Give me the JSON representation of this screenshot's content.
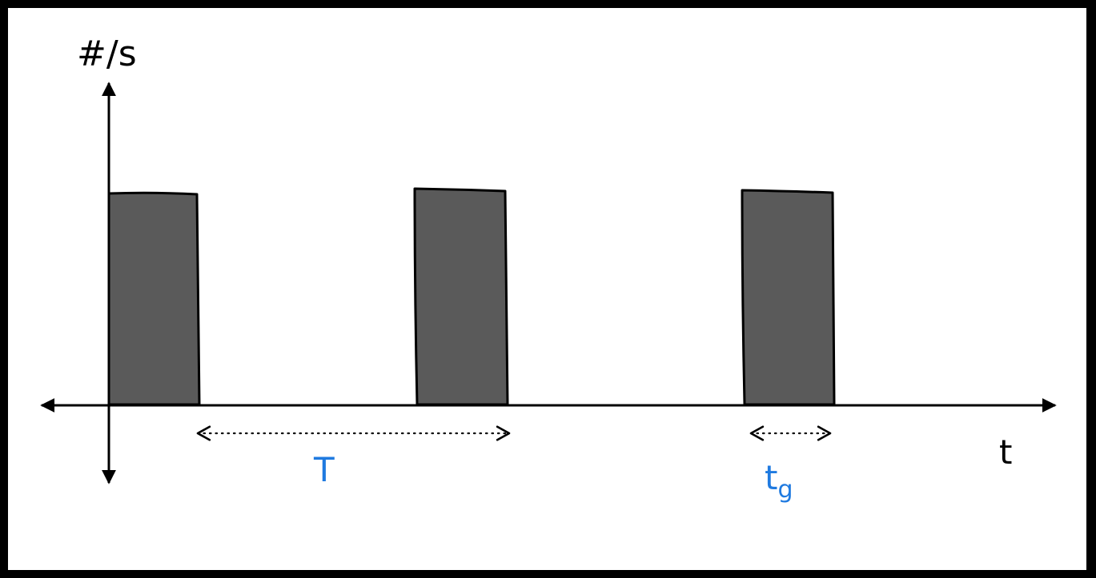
{
  "diagram": {
    "y_axis_label": "#/s",
    "x_axis_label": "t",
    "period_label": "T",
    "gate_label_main": "t",
    "gate_label_sub": "g",
    "pulse_count": 3,
    "colors": {
      "pulse_fill": "#5a5a5a",
      "stroke": "#000000",
      "annotation": "#1f7ae0",
      "background": "#ffffff",
      "border": "#000000"
    }
  }
}
